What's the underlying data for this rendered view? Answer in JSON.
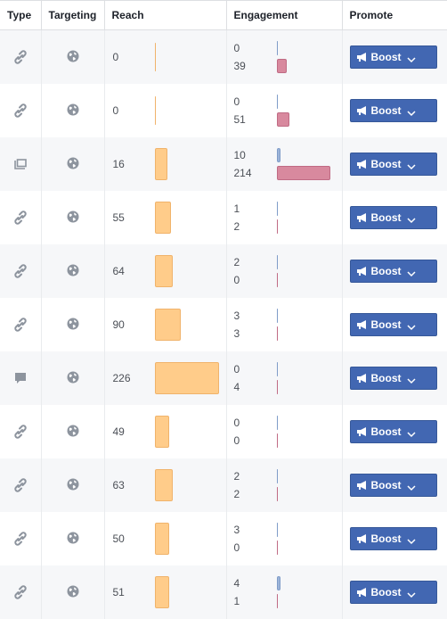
{
  "headers": {
    "type": "Type",
    "targeting": "Targeting",
    "reach": "Reach",
    "engagement": "Engagement",
    "promote": "Promote"
  },
  "reach_max": 226,
  "engagement_max": 214,
  "rows": [
    {
      "type_icon": "link-icon",
      "targeting_icon": "globe-icon",
      "reach": "0",
      "eng_top": "0",
      "eng_bottom": "39",
      "boost_label": "Boost"
    },
    {
      "type_icon": "link-icon",
      "targeting_icon": "globe-icon",
      "reach": "0",
      "eng_top": "0",
      "eng_bottom": "51",
      "boost_label": "Boost"
    },
    {
      "type_icon": "album-icon",
      "targeting_icon": "globe-icon",
      "reach": "16",
      "eng_top": "10",
      "eng_bottom": "214",
      "boost_label": "Boost"
    },
    {
      "type_icon": "link-icon",
      "targeting_icon": "globe-icon",
      "reach": "55",
      "eng_top": "1",
      "eng_bottom": "2",
      "boost_label": "Boost"
    },
    {
      "type_icon": "link-icon",
      "targeting_icon": "globe-icon",
      "reach": "64",
      "eng_top": "2",
      "eng_bottom": "0",
      "boost_label": "Boost"
    },
    {
      "type_icon": "link-icon",
      "targeting_icon": "globe-icon",
      "reach": "90",
      "eng_top": "3",
      "eng_bottom": "3",
      "boost_label": "Boost"
    },
    {
      "type_icon": "status-icon",
      "targeting_icon": "globe-icon",
      "reach": "226",
      "eng_top": "0",
      "eng_bottom": "4",
      "boost_label": "Boost"
    },
    {
      "type_icon": "link-icon",
      "targeting_icon": "globe-icon",
      "reach": "49",
      "eng_top": "0",
      "eng_bottom": "0",
      "boost_label": "Boost"
    },
    {
      "type_icon": "link-icon",
      "targeting_icon": "globe-icon",
      "reach": "63",
      "eng_top": "2",
      "eng_bottom": "2",
      "boost_label": "Boost"
    },
    {
      "type_icon": "link-icon",
      "targeting_icon": "globe-icon",
      "reach": "50",
      "eng_top": "3",
      "eng_bottom": "0",
      "boost_label": "Boost"
    },
    {
      "type_icon": "link-icon",
      "targeting_icon": "globe-icon",
      "reach": "51",
      "eng_top": "4",
      "eng_bottom": "1",
      "boost_label": "Boost"
    }
  ],
  "colors": {
    "reach_bar": "#ffcc8a",
    "engagement_top_bar": "#9cb4d8",
    "engagement_bottom_bar": "#d8899e",
    "boost_button": "#4267b2"
  }
}
